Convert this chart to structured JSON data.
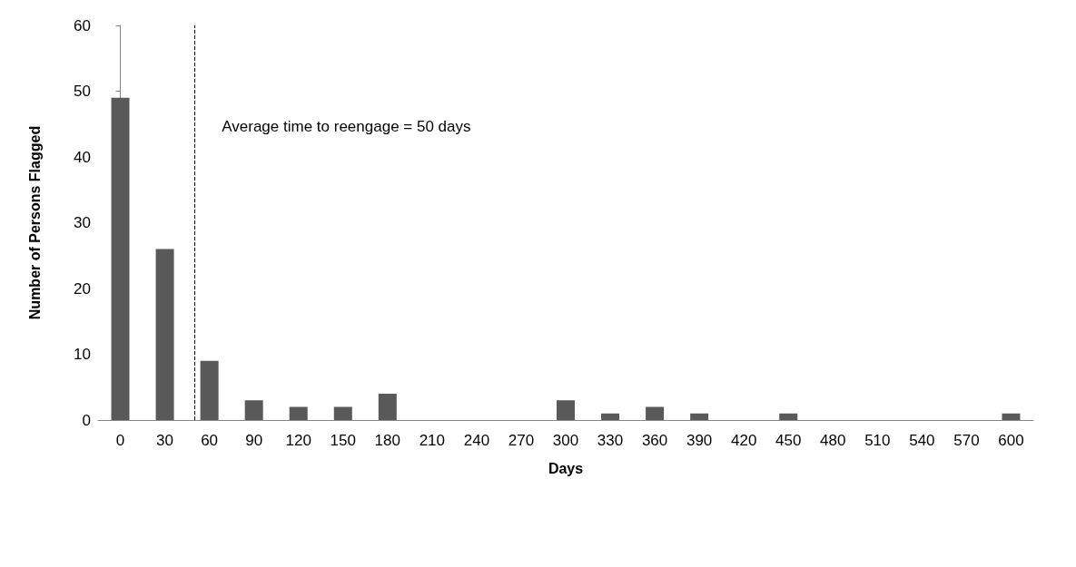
{
  "chart_data": {
    "type": "bar",
    "xlabel": "Days",
    "ylabel": "Number of Persons Flagged",
    "x": [
      0,
      30,
      60,
      90,
      120,
      150,
      180,
      210,
      240,
      270,
      300,
      330,
      360,
      390,
      420,
      450,
      480,
      510,
      540,
      570,
      600
    ],
    "values": [
      49,
      26,
      9,
      3,
      2,
      2,
      4,
      0,
      0,
      0,
      3,
      1,
      2,
      1,
      0,
      1,
      0,
      0,
      0,
      0,
      1
    ],
    "color": "#595959",
    "xlim": [
      -15,
      615
    ],
    "xticks": [
      0,
      30,
      60,
      90,
      120,
      150,
      180,
      210,
      240,
      270,
      300,
      330,
      360,
      390,
      420,
      450,
      480,
      510,
      540,
      570,
      600
    ],
    "ylim": [
      0,
      60
    ],
    "yticks": [
      0,
      10,
      20,
      30,
      40,
      50,
      60
    ],
    "ref_lines": [
      {
        "axis": "x",
        "value": 50,
        "label": "Average time to reengage = 50 days",
        "color": "#000000",
        "line_style": "dashed"
      }
    ],
    "grid": false
  }
}
